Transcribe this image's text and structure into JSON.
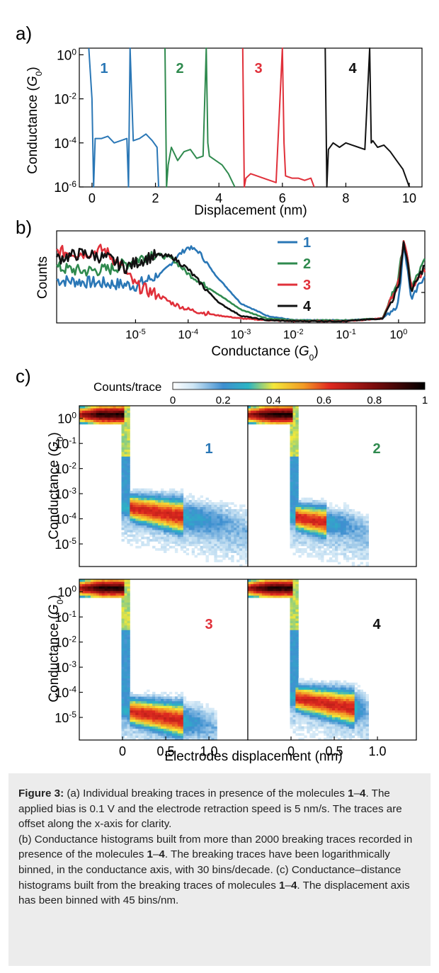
{
  "panel_labels": {
    "a": "a)",
    "b": "b)",
    "c": "c)"
  },
  "colors": {
    "1": "#2a77b6",
    "2": "#2f8a4e",
    "3": "#e0303a",
    "4": "#111111"
  },
  "molecule_labels": [
    "1",
    "2",
    "3",
    "4"
  ],
  "chart_data": [
    {
      "type": "line",
      "panel": "a",
      "title": "",
      "xlabel": "Displacement (nm)",
      "ylabel_main": "Conductance (",
      "ylabel_italic": "G",
      "ylabel_sub": "0",
      "ylabel_close": ")",
      "xlim": [
        -0.4,
        10.4
      ],
      "ylim_log10": [
        -6,
        0.3
      ],
      "y_scale": "log",
      "x_ticks": [
        0,
        2,
        4,
        6,
        8,
        10
      ],
      "x_tick_labels": [
        "0",
        "2",
        "4",
        "6",
        "8",
        "10"
      ],
      "y_ticks_log10": [
        0,
        -2,
        -4,
        -6
      ],
      "y_tick_labels": [
        "10",
        "10",
        "10",
        "10"
      ],
      "y_tick_exponents": [
        "0",
        "-2",
        "-4",
        "-6"
      ],
      "series": [
        {
          "name": "1",
          "x": [
            -0.1,
            0.0,
            0.05,
            0.1,
            0.3,
            0.5,
            0.7,
            0.9,
            1.1,
            1.15,
            1.2,
            1.3,
            1.5,
            1.7,
            1.9,
            2.05,
            2.1
          ],
          "y_log10": [
            0.3,
            -2.0,
            -6.0,
            -3.8,
            -3.8,
            -3.7,
            -4.0,
            -3.9,
            -3.8,
            -6.0,
            0.3,
            -3.9,
            -3.8,
            -3.6,
            -3.9,
            -4.2,
            -6.0
          ]
        },
        {
          "name": "2",
          "x": [
            2.3,
            2.35,
            2.4,
            2.5,
            2.7,
            2.9,
            3.1,
            3.3,
            3.5,
            3.6,
            3.65,
            3.7,
            3.9,
            4.1,
            4.3,
            4.5
          ],
          "y_log10": [
            0.3,
            -6.0,
            -5.0,
            -4.2,
            -4.8,
            -4.4,
            -4.3,
            -4.7,
            -4.6,
            0.3,
            -4.0,
            -4.6,
            -4.8,
            -5.0,
            -5.4,
            -6.0
          ]
        },
        {
          "name": "3",
          "x": [
            4.75,
            4.8,
            4.85,
            5.0,
            5.2,
            5.4,
            5.6,
            5.8,
            6.0,
            6.05,
            6.1,
            6.3,
            6.5,
            6.7,
            6.9,
            7.0
          ],
          "y_log10": [
            0.3,
            -6.0,
            -5.6,
            -5.4,
            -5.5,
            -5.6,
            -5.7,
            -5.8,
            0.3,
            -4.0,
            -5.5,
            -5.6,
            -5.6,
            -5.7,
            -5.6,
            -6.0
          ]
        },
        {
          "name": "4",
          "x": [
            7.35,
            7.4,
            7.45,
            7.6,
            7.8,
            8.0,
            8.2,
            8.4,
            8.6,
            8.75,
            8.8,
            8.85,
            9.0,
            9.2,
            9.4,
            9.6,
            9.8,
            10.0
          ],
          "y_log10": [
            0.3,
            -6.0,
            -4.3,
            -4.0,
            -4.2,
            -4.0,
            -4.1,
            -4.2,
            -4.3,
            0.3,
            -4.0,
            -3.9,
            -4.2,
            -4.1,
            -4.4,
            -4.8,
            -5.2,
            -6.0
          ]
        }
      ]
    },
    {
      "type": "line",
      "panel": "b",
      "title": "",
      "xlabel_main": "Conductance (",
      "xlabel_italic": "G",
      "xlabel_sub": "0",
      "xlabel_close": ")",
      "ylabel": "Counts",
      "x_scale": "log",
      "xlim_log10": [
        -6.5,
        0.5
      ],
      "ylim": [
        0,
        1.0
      ],
      "x_ticks_log10": [
        -5,
        -4,
        -3,
        -2,
        -1,
        0
      ],
      "x_tick_labels": [
        "10",
        "10",
        "10",
        "10",
        "10",
        "10"
      ],
      "x_tick_exponents": [
        "-5",
        "-4",
        "-3",
        "-2",
        "-1",
        "0"
      ],
      "legend": [
        "1",
        "2",
        "3",
        "4"
      ],
      "legend_position": "right",
      "series": [
        {
          "name": "1",
          "x_log10": [
            -6.5,
            -6.0,
            -5.5,
            -5.0,
            -4.5,
            -4.2,
            -4.0,
            -3.8,
            -3.5,
            -3.0,
            -2.5,
            -2.0,
            -1.0,
            -0.3,
            0.0,
            0.1,
            0.25,
            0.5
          ],
          "y": [
            0.48,
            0.46,
            0.44,
            0.42,
            0.55,
            0.75,
            0.85,
            0.8,
            0.55,
            0.22,
            0.08,
            0.03,
            0.03,
            0.05,
            0.22,
            0.9,
            0.25,
            0.55
          ]
        },
        {
          "name": "2",
          "x_log10": [
            -6.5,
            -6.0,
            -5.5,
            -5.0,
            -4.7,
            -4.3,
            -4.0,
            -3.5,
            -3.0,
            -2.5,
            -2.0,
            -1.0,
            -0.3,
            0.0,
            0.1,
            0.25,
            0.5
          ],
          "y": [
            0.62,
            0.58,
            0.6,
            0.7,
            0.78,
            0.72,
            0.55,
            0.35,
            0.15,
            0.05,
            0.03,
            0.03,
            0.05,
            0.5,
            0.95,
            0.4,
            0.7
          ]
        },
        {
          "name": "3",
          "x_log10": [
            -6.5,
            -6.0,
            -5.6,
            -5.3,
            -5.0,
            -4.6,
            -4.3,
            -4.0,
            -3.5,
            -3.0,
            -2.5,
            -2.0,
            -1.0,
            -0.3,
            0.0,
            0.1,
            0.25,
            0.5
          ],
          "y": [
            0.8,
            0.78,
            0.82,
            0.65,
            0.42,
            0.32,
            0.22,
            0.15,
            0.09,
            0.05,
            0.03,
            0.02,
            0.02,
            0.05,
            0.45,
            0.95,
            0.4,
            0.6
          ]
        },
        {
          "name": "4",
          "x_log10": [
            -6.5,
            -6.0,
            -5.5,
            -5.2,
            -4.9,
            -4.6,
            -4.3,
            -4.0,
            -3.7,
            -3.4,
            -3.0,
            -2.5,
            -2.0,
            -1.0,
            -0.3,
            0.0,
            0.1,
            0.25,
            0.5
          ],
          "y": [
            0.72,
            0.78,
            0.72,
            0.62,
            0.7,
            0.76,
            0.74,
            0.6,
            0.4,
            0.22,
            0.08,
            0.03,
            0.02,
            0.02,
            0.05,
            0.4,
            0.92,
            0.35,
            0.65
          ]
        }
      ]
    },
    {
      "type": "heatmap",
      "panel": "c",
      "title": "",
      "colorbar_label": "Counts/trace",
      "colorbar_ticks": [
        0,
        0.2,
        0.4,
        0.6,
        0.8,
        1
      ],
      "colorbar_tick_labels": [
        "0",
        "0.2",
        "0.4",
        "0.6",
        "0.8",
        "1"
      ],
      "xlabel": "Electrodes displacement (nm)",
      "ylabel_main": "Conductance (",
      "ylabel_italic": "G",
      "ylabel_sub": "0",
      "ylabel_close": ")",
      "xlim": [
        -0.5,
        1.45
      ],
      "ylim_log10": [
        -5.9,
        0.5
      ],
      "x_ticks": [
        0,
        0.5,
        1.0
      ],
      "x_tick_labels": [
        "0",
        "0.5",
        "1.0"
      ],
      "y_ticks_log10": [
        0,
        -1,
        -2,
        -3,
        -4,
        -5
      ],
      "y_tick_labels": [
        "10",
        "10",
        "10",
        "10",
        "10",
        "10"
      ],
      "y_tick_exponents": [
        "0",
        "-1",
        "-2",
        "-3",
        "-4",
        "-5"
      ],
      "panels": [
        {
          "name": "1",
          "plateau_log10": -3.5,
          "plateau_length_nm": 1.45,
          "hot_start_nm": 0.1,
          "hot_end_nm": 0.7
        },
        {
          "name": "2",
          "plateau_log10": -3.9,
          "plateau_length_nm": 0.9,
          "hot_start_nm": 0.05,
          "hot_end_nm": 0.4
        },
        {
          "name": "3",
          "plateau_log10": -4.7,
          "plateau_length_nm": 1.1,
          "hot_start_nm": 0.1,
          "hot_end_nm": 0.7
        },
        {
          "name": "4",
          "plateau_log10": -4.2,
          "plateau_length_nm": 0.9,
          "hot_start_nm": 0.05,
          "hot_end_nm": 0.75
        }
      ]
    }
  ],
  "caption": {
    "head": "Figure 3:",
    "p1a": " (a) Individual breaking traces in presence of the molecules ",
    "p1b": "1",
    "p1c": "–",
    "p1d": "4",
    "p1e": ". The applied bias is 0.1 V and the electrode retraction speed is 5 nm/s. The traces are offset along the x-axis for clarity.",
    "p2a": "(b) Conductance histograms built from more than 2000 breaking traces recorded in presence of the molecules ",
    "p2b": "1",
    "p2c": "–",
    "p2d": "4",
    "p2e": ". The breaking traces have been logarithmically binned, in the conductance axis, with 30 bins/decade. (c) Conductance–distance histograms built from the breaking traces of molecules ",
    "p2f": "1",
    "p2g": "–",
    "p2h": "4",
    "p2i": ". The displacement axis has been binned with 45 bins/nm."
  }
}
